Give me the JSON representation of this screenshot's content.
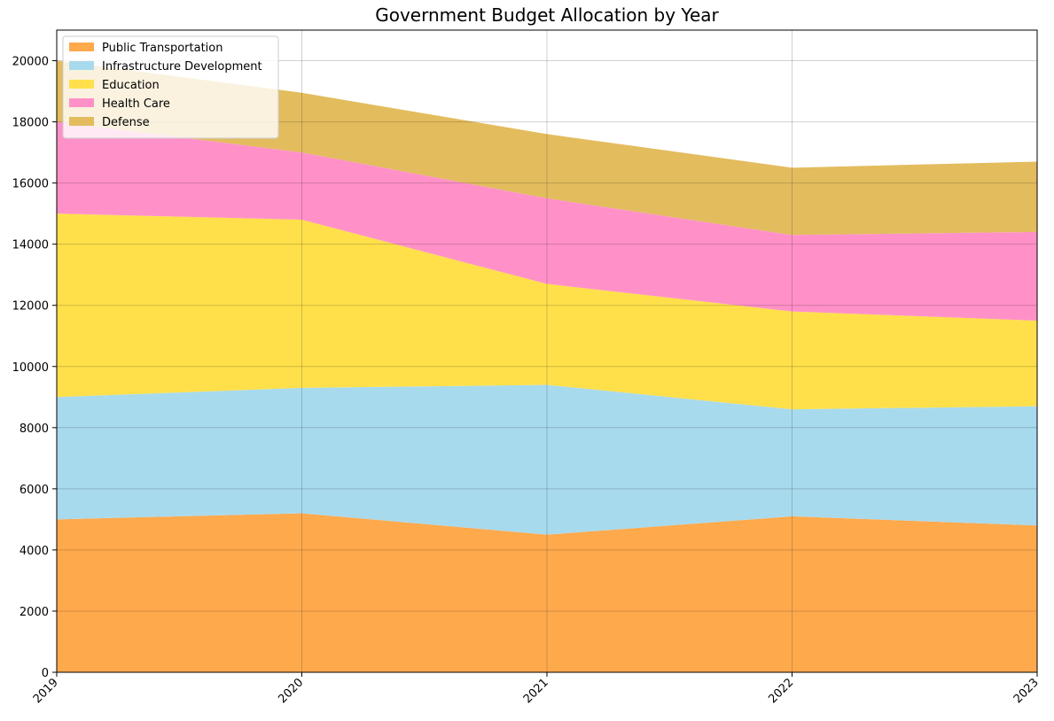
{
  "chart_data": {
    "type": "area",
    "stacked": true,
    "title": "Government Budget Allocation by Year",
    "xlabel": "",
    "ylabel": "",
    "categories": [
      "2019",
      "2020",
      "2021",
      "2022",
      "2023"
    ],
    "ylim": [
      0,
      21000
    ],
    "yticks": [
      0,
      2000,
      4000,
      6000,
      8000,
      10000,
      12000,
      14000,
      16000,
      18000,
      20000
    ],
    "grid": true,
    "legend_position": "top-left",
    "series": [
      {
        "name": "Public Transportation",
        "color": "#FFA94D",
        "values": [
          5000,
          5200,
          4500,
          5100,
          4800
        ]
      },
      {
        "name": "Infrastructure Development",
        "color": "#A8DAED",
        "values": [
          4000,
          4100,
          4900,
          3500,
          3900
        ]
      },
      {
        "name": "Education",
        "color": "#FFE04B",
        "values": [
          6000,
          5500,
          3300,
          3200,
          2800
        ]
      },
      {
        "name": "Health Care",
        "color": "#FF91C8",
        "values": [
          3000,
          2200,
          2800,
          2500,
          2900
        ]
      },
      {
        "name": "Defense",
        "color": "#E3BC5E",
        "values": [
          2000,
          1950,
          2100,
          2200,
          2300
        ]
      }
    ]
  }
}
